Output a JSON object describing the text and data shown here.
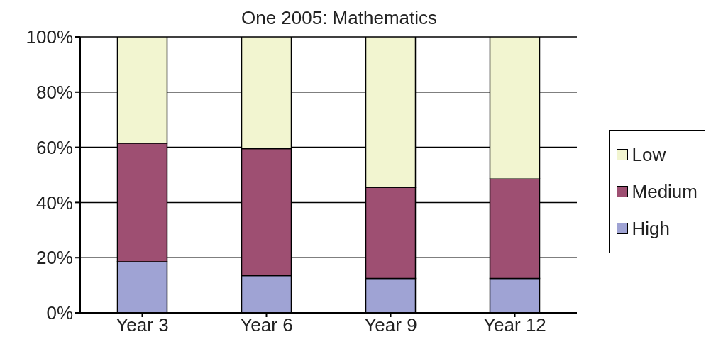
{
  "chart_data": {
    "type": "bar",
    "title": "One 2005: Mathematics",
    "stacked": true,
    "categories": [
      "Year 3",
      "Year 6",
      "Year 9",
      "Year 12"
    ],
    "series": [
      {
        "name": "High",
        "color": "#9fa3d4",
        "values": [
          18.5,
          13.5,
          12.5,
          12.5
        ]
      },
      {
        "name": "Medium",
        "color": "#9e4f72",
        "values": [
          43,
          46,
          33,
          36
        ]
      },
      {
        "name": "Low",
        "color": "#f2f5d0",
        "values": [
          38.5,
          40.5,
          54.5,
          51.5
        ]
      }
    ],
    "ylim": [
      0,
      100
    ],
    "yticks": [
      {
        "value": 0,
        "label": "0%"
      },
      {
        "value": 20,
        "label": "20%"
      },
      {
        "value": 40,
        "label": "40%"
      },
      {
        "value": 60,
        "label": "60%"
      },
      {
        "value": 80,
        "label": "80%"
      },
      {
        "value": 100,
        "label": "100%"
      }
    ],
    "grid": "y",
    "legend": "right"
  }
}
